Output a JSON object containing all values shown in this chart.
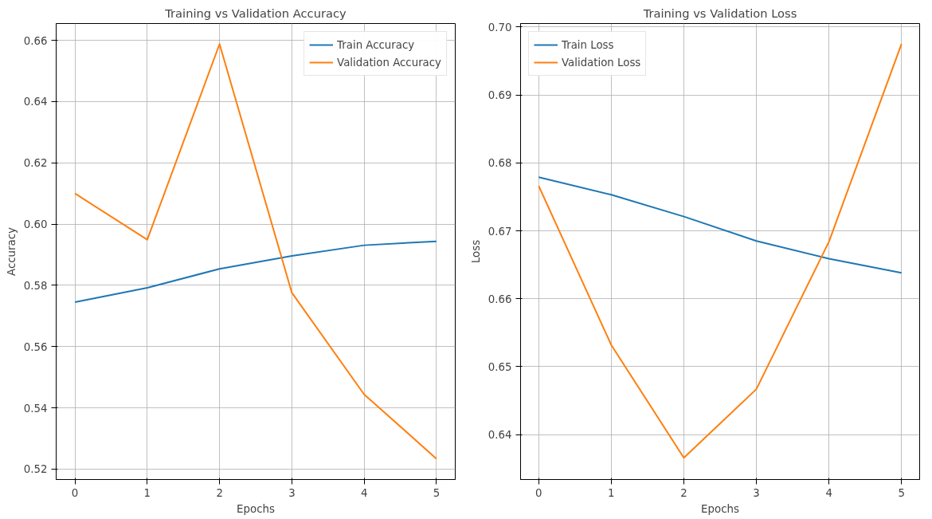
{
  "chart_data": [
    {
      "type": "line",
      "title": "Training vs Validation Accuracy",
      "xlabel": "Epochs",
      "ylabel": "Accuracy",
      "x": [
        0,
        1,
        2,
        3,
        4,
        5
      ],
      "xlim": [
        -0.26,
        5.26
      ],
      "xticks": [
        0,
        1,
        2,
        3,
        4,
        5
      ],
      "ylim": [
        0.5166,
        0.6655
      ],
      "yticks": [
        0.52,
        0.54,
        0.56,
        0.58,
        {
          "value": 0.6,
          "label": "0.60"
        },
        0.62,
        0.64,
        0.66
      ],
      "grid": true,
      "legend": "top right",
      "line_style": "solid",
      "marker": "none",
      "series": [
        {
          "name": "Train Accuracy",
          "color": "#1f77b4",
          "values": [
            0.5745,
            0.5792,
            0.5854,
            0.5896,
            0.5931,
            0.5944
          ]
        },
        {
          "name": "Validation Accuracy",
          "color": "#ff7f0e",
          "values": [
            0.61,
            0.5949,
            0.6588,
            0.5776,
            0.5444,
            0.5234
          ]
        }
      ]
    },
    {
      "type": "line",
      "title": "Training vs Validation Loss",
      "xlabel": "Epochs",
      "ylabel": "Loss",
      "x": [
        0,
        1,
        2,
        3,
        4,
        5
      ],
      "xlim": [
        -0.25,
        5.25
      ],
      "xticks": [
        0,
        1,
        2,
        3,
        4,
        5
      ],
      "ylim": [
        0.6334,
        0.7005
      ],
      "yticks": [
        0.64,
        0.65,
        0.66,
        0.67,
        0.68,
        0.69,
        {
          "value": 0.7,
          "label": "0.70"
        }
      ],
      "grid": true,
      "legend": "top left",
      "line_style": "solid",
      "marker": "none",
      "series": [
        {
          "name": "Train Loss",
          "color": "#1f77b4",
          "values": [
            0.6779,
            0.6753,
            0.6721,
            0.6685,
            0.6659,
            0.6638
          ]
        },
        {
          "name": "Validation Loss",
          "color": "#ff7f0e",
          "values": [
            0.6766,
            0.6532,
            0.6366,
            0.6467,
            0.6684,
            0.6975
          ]
        }
      ]
    }
  ]
}
